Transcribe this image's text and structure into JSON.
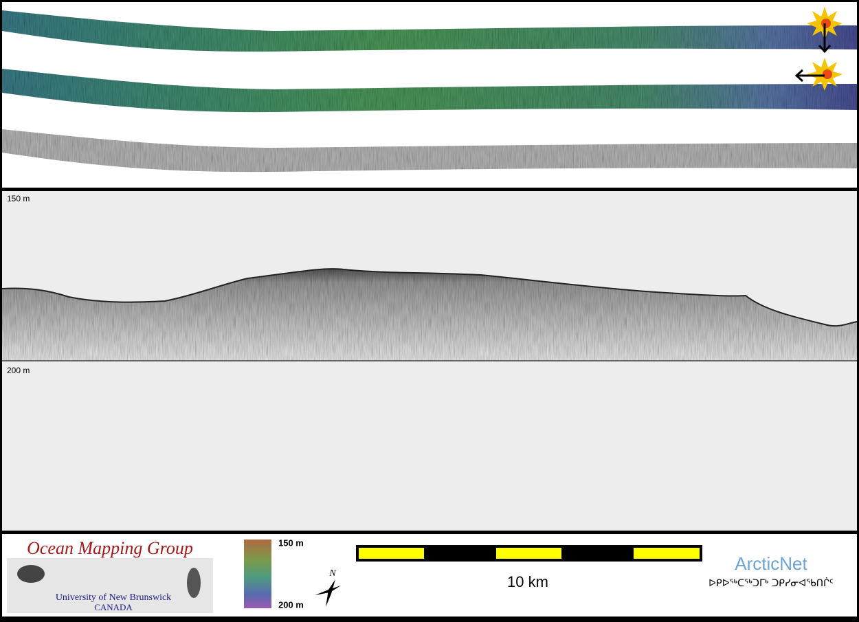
{
  "profile": {
    "top_depth_label": "150 m",
    "bottom_depth_label": "200 m"
  },
  "footer": {
    "logo": {
      "title": "Ocean Mapping Group",
      "university": "University of New Brunswick",
      "country": "CANADA"
    },
    "depth_legend": {
      "top": "150 m",
      "bottom": "200 m"
    },
    "compass": "N",
    "scale_bar": "10 km",
    "partner": {
      "name": "ArcticNet",
      "inuktitut": "ᐅᑭᐅᖅᑕᖅᑐᒥᒃ ᑐᑭᓯᓂᐊᖃᑎᒌᑦ"
    }
  }
}
